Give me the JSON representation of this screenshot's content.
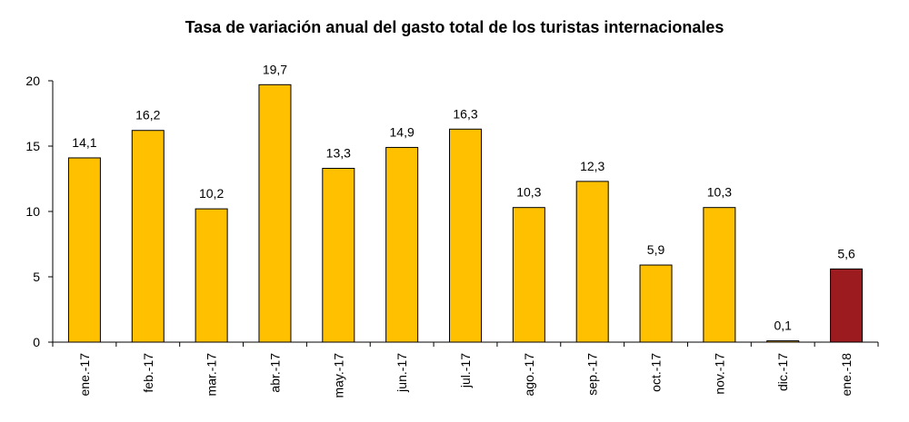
{
  "chart_data": {
    "type": "bar",
    "title": "Tasa de variación anual del gasto total de los turistas internacionales",
    "categories": [
      "ene.-17",
      "feb.-17",
      "mar.-17",
      "abr.-17",
      "may.-17",
      "jun.-17",
      "jul.-17",
      "ago.-17",
      "sep.-17",
      "oct.-17",
      "nov.-17",
      "dic.-17",
      "ene.-18"
    ],
    "values": [
      14.1,
      16.2,
      10.2,
      19.7,
      13.3,
      14.9,
      16.3,
      10.3,
      12.3,
      5.9,
      10.3,
      0.1,
      5.6
    ],
    "value_labels": [
      "14,1",
      "16,2",
      "10,2",
      "19,7",
      "13,3",
      "14,9",
      "16,3",
      "10,3",
      "12,3",
      "5,9",
      "10,3",
      "0,1",
      "5,6"
    ],
    "ylim": [
      0,
      20
    ],
    "yticks": [
      0,
      5,
      10,
      15,
      20
    ],
    "xlabel": "",
    "ylabel": "",
    "grid": false,
    "colors": {
      "default": "#FFC000",
      "highlight": "#9B1B1F",
      "outline": "#000000"
    },
    "highlight_index": 12
  }
}
